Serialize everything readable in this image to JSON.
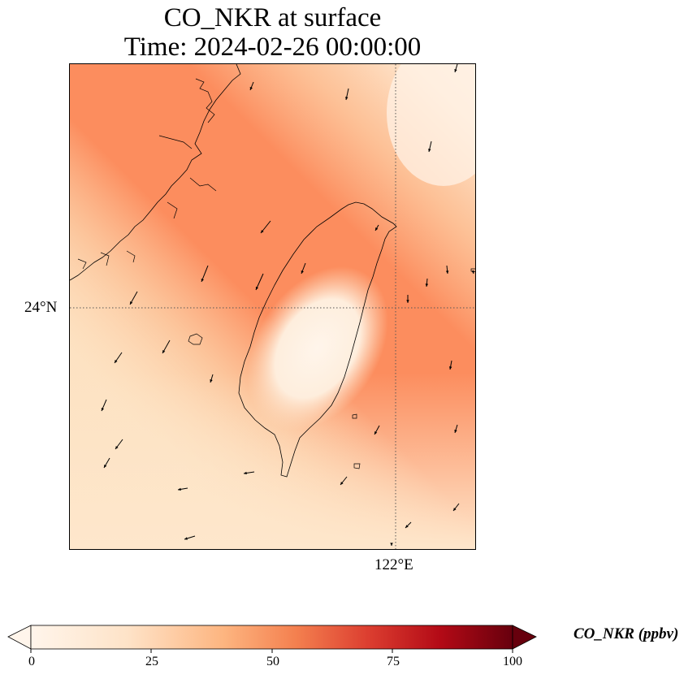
{
  "title": "CO_NKR at surface",
  "subtitle": "Time: 2024-02-26 00:00:00",
  "map": {
    "lat_tick": "24°N",
    "lon_tick": "122°E",
    "gridline_color": "#555555"
  },
  "colorbar": {
    "label": "CO_NKR (ppbv)",
    "min": 0,
    "max": 100,
    "ticks": [
      "0",
      "25",
      "50",
      "75",
      "100"
    ],
    "colormap": "Oranges-Reds",
    "extend": "both"
  },
  "colors": {
    "low": "#fff5eb",
    "mid": "#fdae6b",
    "high_band": "#fc8a5a",
    "max": "#67000d"
  }
}
